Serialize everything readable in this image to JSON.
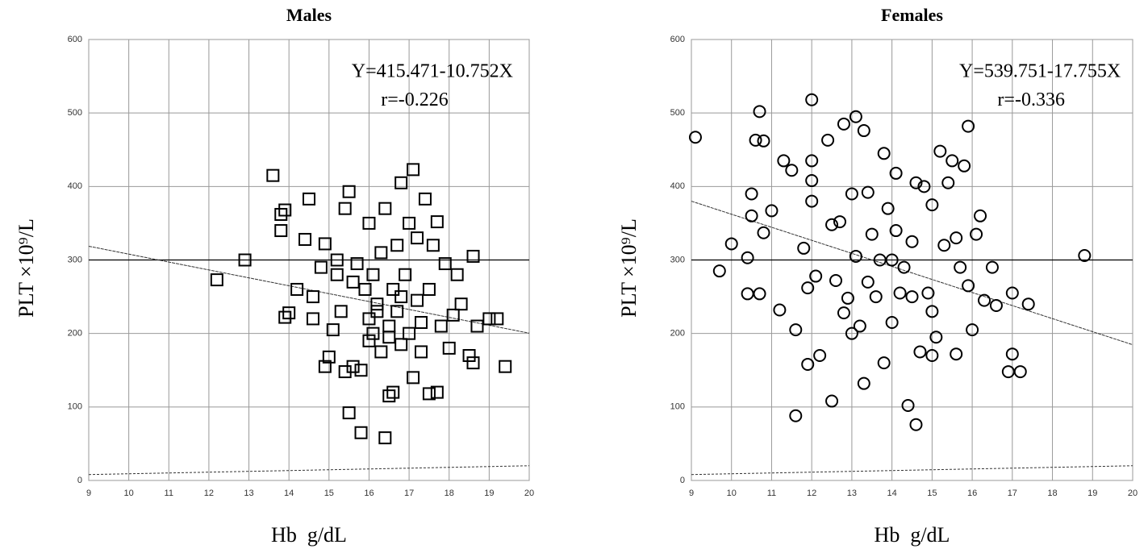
{
  "chart_data": [
    {
      "type": "scatter",
      "title": "Males",
      "x_label": "Hb  g/dL",
      "y_label": "PLT ×10⁹/L",
      "marker": "square",
      "color": "#000000",
      "annotations": [
        "Y=415.471-10.752X",
        "r=-0.226"
      ],
      "xlim": [
        9,
        20
      ],
      "ylim": [
        0,
        600
      ],
      "xticks": [
        9,
        10,
        11,
        12,
        13,
        14,
        15,
        16,
        17,
        18,
        19,
        20
      ],
      "yticks": [
        0,
        100,
        200,
        300,
        400,
        500,
        600
      ],
      "grid": true,
      "emphasis_y": 300,
      "fit_line": {
        "x": [
          9,
          20
        ],
        "values": [
          318.7,
          200.4
        ]
      },
      "base_line": {
        "x": [
          9,
          20
        ],
        "values": [
          8,
          20
        ]
      },
      "x": [
        12.2,
        12.9,
        13.6,
        13.8,
        13.8,
        13.9,
        13.9,
        14.0,
        14.2,
        14.4,
        14.5,
        14.6,
        14.6,
        14.8,
        14.9,
        14.9,
        15.0,
        15.1,
        15.2,
        15.3,
        15.4,
        15.4,
        15.5,
        15.5,
        15.6,
        15.7,
        15.8,
        15.8,
        15.9,
        16.0,
        16.0,
        16.1,
        16.1,
        16.2,
        16.3,
        16.3,
        16.4,
        16.4,
        16.5,
        16.5,
        16.6,
        16.6,
        16.7,
        16.7,
        16.8,
        16.8,
        16.9,
        17.0,
        17.0,
        17.1,
        17.1,
        17.2,
        17.2,
        17.3,
        17.4,
        17.5,
        17.5,
        17.6,
        17.7,
        17.7,
        17.8,
        17.9,
        18.0,
        18.1,
        18.2,
        18.3,
        18.5,
        18.6,
        18.6,
        18.7,
        19.0,
        19.2,
        19.4,
        15.2,
        15.6,
        16.0,
        16.2,
        16.8,
        17.3,
        16.5
      ],
      "values": [
        273,
        300,
        415,
        362,
        340,
        368,
        222,
        228,
        260,
        328,
        383,
        250,
        220,
        290,
        322,
        155,
        168,
        205,
        300,
        230,
        148,
        370,
        393,
        92,
        155,
        295,
        65,
        150,
        260,
        350,
        220,
        280,
        200,
        240,
        175,
        310,
        58,
        370,
        115,
        210,
        120,
        260,
        320,
        230,
        405,
        185,
        280,
        350,
        200,
        423,
        140,
        330,
        245,
        175,
        383,
        118,
        260,
        320,
        120,
        352,
        210,
        295,
        180,
        225,
        280,
        240,
        170,
        305,
        160,
        210,
        220,
        220,
        155,
        280,
        270,
        190,
        230,
        250,
        215,
        195
      ]
    },
    {
      "type": "scatter",
      "title": "Females",
      "x_label": "Hb  g/dL",
      "y_label": "PLT ×10⁹/L",
      "marker": "circle",
      "color": "#000000",
      "annotations": [
        "Y=539.751-17.755X",
        "r=-0.336"
      ],
      "xlim": [
        9,
        20
      ],
      "ylim": [
        0,
        600
      ],
      "xticks": [
        9,
        10,
        11,
        12,
        13,
        14,
        15,
        16,
        17,
        18,
        19,
        20
      ],
      "yticks": [
        0,
        100,
        200,
        300,
        400,
        500,
        600
      ],
      "grid": true,
      "emphasis_y": 300,
      "fit_line": {
        "x": [
          9,
          20
        ],
        "values": [
          380,
          184.7
        ]
      },
      "base_line": {
        "x": [
          9,
          20
        ],
        "values": [
          8,
          20
        ]
      },
      "x": [
        9.1,
        9.7,
        10.0,
        10.4,
        10.4,
        10.5,
        10.5,
        10.6,
        10.7,
        10.7,
        10.8,
        10.8,
        11.0,
        11.2,
        11.3,
        11.5,
        11.6,
        11.6,
        11.8,
        11.9,
        11.9,
        12.0,
        12.0,
        12.0,
        12.0,
        12.1,
        12.2,
        12.4,
        12.5,
        12.5,
        12.6,
        12.7,
        12.8,
        12.8,
        12.9,
        13.0,
        13.0,
        13.1,
        13.1,
        13.2,
        13.3,
        13.3,
        13.4,
        13.4,
        13.5,
        13.6,
        13.7,
        13.8,
        13.8,
        13.9,
        14.0,
        14.1,
        14.1,
        14.2,
        14.3,
        14.4,
        14.5,
        14.6,
        14.6,
        14.7,
        14.8,
        14.9,
        15.0,
        15.0,
        15.1,
        15.2,
        15.3,
        15.4,
        15.5,
        15.6,
        15.6,
        15.7,
        15.8,
        15.9,
        15.9,
        16.0,
        16.1,
        16.2,
        16.3,
        16.5,
        16.6,
        16.9,
        17.0,
        17.0,
        17.2,
        17.4,
        18.8,
        14.0,
        14.5,
        15.0
      ],
      "values": [
        467,
        285,
        322,
        303,
        254,
        390,
        360,
        463,
        502,
        254,
        462,
        337,
        367,
        232,
        435,
        422,
        205,
        88,
        316,
        158,
        262,
        518,
        435,
        380,
        408,
        278,
        170,
        463,
        348,
        108,
        272,
        352,
        485,
        228,
        248,
        390,
        200,
        495,
        305,
        210,
        132,
        476,
        392,
        270,
        335,
        250,
        300,
        445,
        160,
        370,
        215,
        418,
        340,
        255,
        290,
        102,
        325,
        76,
        405,
        175,
        400,
        255,
        375,
        170,
        195,
        448,
        320,
        405,
        435,
        172,
        330,
        290,
        428,
        482,
        265,
        205,
        335,
        360,
        245,
        290,
        238,
        148,
        172,
        255,
        148,
        240,
        306,
        300,
        250,
        230
      ]
    }
  ]
}
